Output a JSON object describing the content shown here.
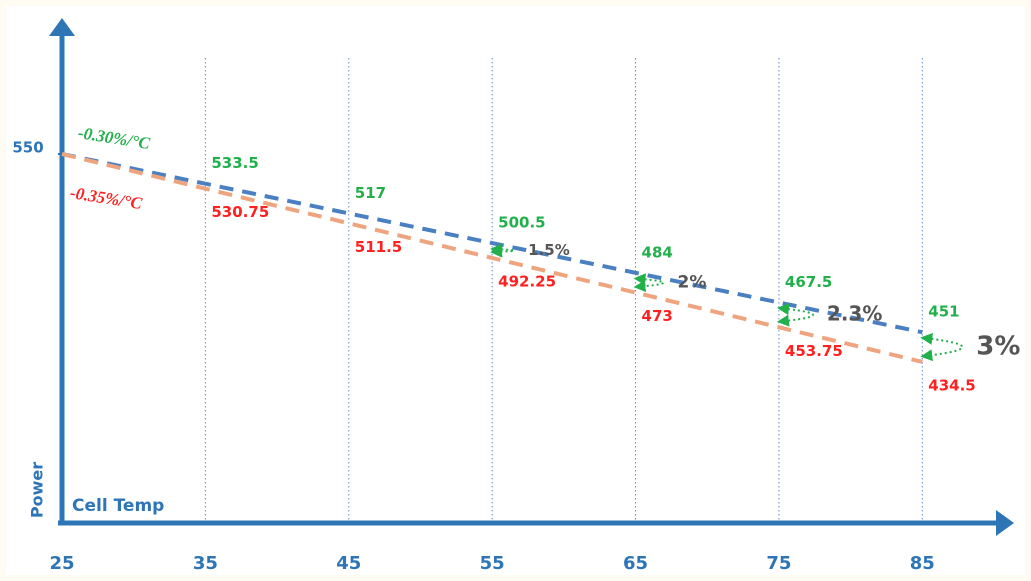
{
  "chart_data": {
    "type": "line",
    "x_label": "Cell Temp",
    "y_label": "Power",
    "x": [
      25,
      35,
      45,
      55,
      65,
      75,
      85
    ],
    "xlim": [
      25,
      90
    ],
    "xticks": [
      25,
      35,
      45,
      55,
      65,
      75,
      85
    ],
    "ylim": [
      345,
      620
    ],
    "yticks": [
      550
    ],
    "grid": true,
    "series": [
      {
        "name": "-0.30%/°C",
        "color": "#4a7fc1",
        "label_color": "#22b04b",
        "values": [
          550,
          533.5,
          517,
          500.5,
          484,
          467.5,
          451
        ]
      },
      {
        "name": "-0.35%/°C",
        "color": "#eea57f",
        "label_color": "#ff2020",
        "values": [
          550,
          530.75,
          511.5,
          492.25,
          473,
          453.75,
          434.5
        ]
      }
    ],
    "annotations": [
      {
        "x": 55,
        "text": "1.5%"
      },
      {
        "x": 65,
        "text": "2%"
      },
      {
        "x": 75,
        "text": "2.3%"
      },
      {
        "x": 85,
        "text": "3%"
      }
    ]
  }
}
